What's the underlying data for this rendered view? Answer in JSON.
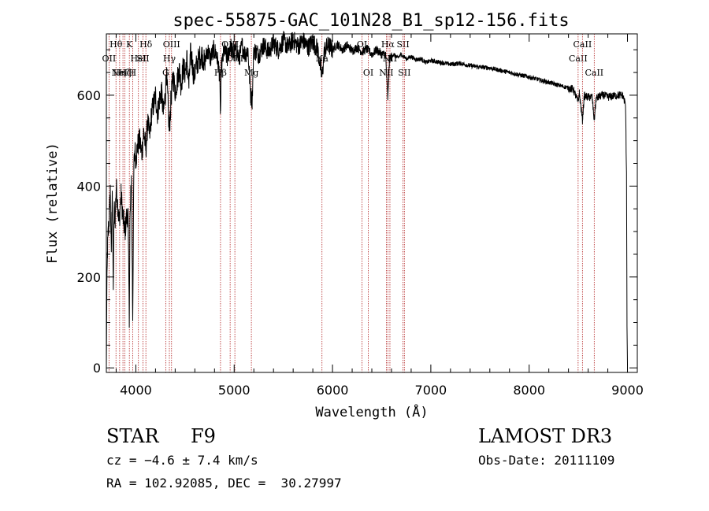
{
  "chart_data": {
    "type": "line",
    "title": "spec-55875-GAC_101N28_B1_sp12-156.fits",
    "xlabel": "Wavelength (Å)",
    "ylabel": "Flux (relative)",
    "xlim": [
      3700,
      9100
    ],
    "ylim": [
      -10,
      735
    ],
    "x_ticks": [
      4000,
      5000,
      6000,
      7000,
      8000,
      9000
    ],
    "y_ticks": [
      0,
      200,
      400,
      600
    ],
    "anchors": [
      [
        3700,
        0
      ],
      [
        3705,
        160
      ],
      [
        3712,
        260
      ],
      [
        3720,
        300
      ],
      [
        3730,
        330
      ],
      [
        3740,
        390
      ],
      [
        3750,
        250
      ],
      [
        3760,
        400
      ],
      [
        3770,
        180
      ],
      [
        3780,
        350
      ],
      [
        3790,
        330
      ],
      [
        3800,
        400
      ],
      [
        3815,
        360
      ],
      [
        3830,
        320
      ],
      [
        3850,
        380
      ],
      [
        3870,
        330
      ],
      [
        3889,
        300
      ],
      [
        3905,
        330
      ],
      [
        3920,
        340
      ],
      [
        3933,
        110
      ],
      [
        3940,
        320
      ],
      [
        3955,
        420
      ],
      [
        3968,
        110
      ],
      [
        3980,
        440
      ],
      [
        3990,
        480
      ],
      [
        4000,
        460
      ],
      [
        4020,
        490
      ],
      [
        4040,
        500
      ],
      [
        4060,
        470
      ],
      [
        4080,
        520
      ],
      [
        4102,
        480
      ],
      [
        4120,
        540
      ],
      [
        4140,
        510
      ],
      [
        4160,
        560
      ],
      [
        4180,
        580
      ],
      [
        4200,
        600
      ],
      [
        4220,
        560
      ],
      [
        4240,
        590
      ],
      [
        4260,
        610
      ],
      [
        4280,
        560
      ],
      [
        4300,
        600
      ],
      [
        4310,
        650
      ],
      [
        4325,
        590
      ],
      [
        4340,
        520
      ],
      [
        4360,
        600
      ],
      [
        4380,
        640
      ],
      [
        4400,
        610
      ],
      [
        4420,
        630
      ],
      [
        4440,
        660
      ],
      [
        4460,
        620
      ],
      [
        4480,
        660
      ],
      [
        4500,
        650
      ],
      [
        4520,
        680
      ],
      [
        4540,
        620
      ],
      [
        4555,
        690
      ],
      [
        4570,
        680
      ],
      [
        4590,
        640
      ],
      [
        4610,
        660
      ],
      [
        4640,
        680
      ],
      [
        4670,
        690
      ],
      [
        4700,
        670
      ],
      [
        4730,
        700
      ],
      [
        4760,
        680
      ],
      [
        4790,
        700
      ],
      [
        4820,
        690
      ],
      [
        4850,
        650
      ],
      [
        4861,
        560
      ],
      [
        4870,
        660
      ],
      [
        4900,
        700
      ],
      [
        4930,
        680
      ],
      [
        4960,
        710
      ],
      [
        4990,
        690
      ],
      [
        5020,
        700
      ],
      [
        5050,
        680
      ],
      [
        5080,
        710
      ],
      [
        5110,
        690
      ],
      [
        5140,
        700
      ],
      [
        5167,
        600
      ],
      [
        5183,
        590
      ],
      [
        5200,
        700
      ],
      [
        5250,
        690
      ],
      [
        5300,
        710
      ],
      [
        5350,
        695
      ],
      [
        5400,
        715
      ],
      [
        5450,
        700
      ],
      [
        5500,
        720
      ],
      [
        5550,
        705
      ],
      [
        5600,
        722
      ],
      [
        5650,
        708
      ],
      [
        5700,
        720
      ],
      [
        5750,
        705
      ],
      [
        5800,
        718
      ],
      [
        5850,
        700
      ],
      [
        5893,
        640
      ],
      [
        5920,
        700
      ],
      [
        5960,
        710
      ],
      [
        6000,
        700
      ],
      [
        6050,
        712
      ],
      [
        6100,
        700
      ],
      [
        6150,
        710
      ],
      [
        6200,
        698
      ],
      [
        6250,
        705
      ],
      [
        6300,
        695
      ],
      [
        6350,
        702
      ],
      [
        6400,
        690
      ],
      [
        6450,
        700
      ],
      [
        6500,
        690
      ],
      [
        6540,
        690
      ],
      [
        6563,
        590
      ],
      [
        6580,
        680
      ],
      [
        6620,
        690
      ],
      [
        6660,
        682
      ],
      [
        6700,
        690
      ],
      [
        6750,
        680
      ],
      [
        6800,
        685
      ],
      [
        6850,
        678
      ],
      [
        6900,
        680
      ],
      [
        6950,
        672
      ],
      [
        7000,
        676
      ],
      [
        7100,
        672
      ],
      [
        7200,
        668
      ],
      [
        7300,
        670
      ],
      [
        7400,
        665
      ],
      [
        7500,
        662
      ],
      [
        7600,
        660
      ],
      [
        7700,
        655
      ],
      [
        7800,
        650
      ],
      [
        7900,
        645
      ],
      [
        8000,
        640
      ],
      [
        8100,
        634
      ],
      [
        8200,
        628
      ],
      [
        8300,
        622
      ],
      [
        8400,
        616
      ],
      [
        8450,
        612
      ],
      [
        8498,
        585
      ],
      [
        8510,
        605
      ],
      [
        8542,
        545
      ],
      [
        8560,
        598
      ],
      [
        8600,
        596
      ],
      [
        8640,
        596
      ],
      [
        8662,
        545
      ],
      [
        8680,
        592
      ],
      [
        8720,
        598
      ],
      [
        8760,
        600
      ],
      [
        8800,
        596
      ],
      [
        8850,
        598
      ],
      [
        8900,
        600
      ],
      [
        8950,
        600
      ],
      [
        8980,
        580
      ],
      [
        8990,
        430
      ],
      [
        8995,
        100
      ],
      [
        9000,
        5
      ]
    ],
    "noise": [
      {
        "from": 3700,
        "to": 4700,
        "amplitude": 28
      },
      {
        "from": 4700,
        "to": 6000,
        "amplitude": 22
      },
      {
        "from": 6000,
        "to": 6600,
        "amplitude": 10
      },
      {
        "from": 6600,
        "to": 8400,
        "amplitude": 5
      },
      {
        "from": 8400,
        "to": 9000,
        "amplitude": 9
      }
    ],
    "lines": [
      {
        "wl": 3727,
        "label": "OII",
        "row": 2
      },
      {
        "wl": 3798,
        "label": "Hθ",
        "row": 1
      },
      {
        "wl": 3835,
        "label": "Hη",
        "row": 3
      },
      {
        "wl": 3869,
        "label": "NeIII",
        "row": 3
      },
      {
        "wl": 3889,
        "label": "Hζ",
        "row": 3
      },
      {
        "wl": 3934,
        "label": "K",
        "row": 1
      },
      {
        "wl": 3968,
        "label": "H",
        "row": 3
      },
      {
        "wl": 4026,
        "label": "HeI",
        "row": 2
      },
      {
        "wl": 4072,
        "label": "SII",
        "row": 2
      },
      {
        "wl": 4102,
        "label": "Hδ",
        "row": 1
      },
      {
        "wl": 4304,
        "label": "G",
        "row": 3
      },
      {
        "wl": 4341,
        "label": "Hγ",
        "row": 2
      },
      {
        "wl": 4363,
        "label": "OIII",
        "row": 1
      },
      {
        "wl": 4861,
        "label": "Hβ",
        "row": 3
      },
      {
        "wl": 4959,
        "label": "OIII",
        "row": 1
      },
      {
        "wl": 5007,
        "label": "OIII",
        "row": 2
      },
      {
        "wl": 5175,
        "label": "Mg",
        "row": 3
      },
      {
        "wl": 5893,
        "label": "Na",
        "row": 2
      },
      {
        "wl": 6300,
        "label": "OI",
        "row": 1
      },
      {
        "wl": 6364,
        "label": "OI",
        "row": 3
      },
      {
        "wl": 6548,
        "label": "NII",
        "row": 3
      },
      {
        "wl": 6563,
        "label": "Hα",
        "row": 1
      },
      {
        "wl": 6584,
        "label": "NII",
        "row": 2
      },
      {
        "wl": 6717,
        "label": "SII",
        "row": 1
      },
      {
        "wl": 6731,
        "label": "SII",
        "row": 3
      },
      {
        "wl": 8498,
        "label": "CaII",
        "row": 2
      },
      {
        "wl": 8542,
        "label": "CaII",
        "row": 1
      },
      {
        "wl": 8662,
        "label": "CaII",
        "row": 3
      }
    ]
  },
  "info": {
    "object_class": "STAR",
    "subclass": "F9",
    "survey": "LAMOST DR3",
    "cz": "cz = −4.6 ± 7.4 km/s",
    "obs_date": "Obs-Date: 20111109",
    "coords": "RA = 102.92085, DEC =  30.27997"
  },
  "colors": {
    "line_marker": "#b22222",
    "spectrum": "#000000"
  }
}
